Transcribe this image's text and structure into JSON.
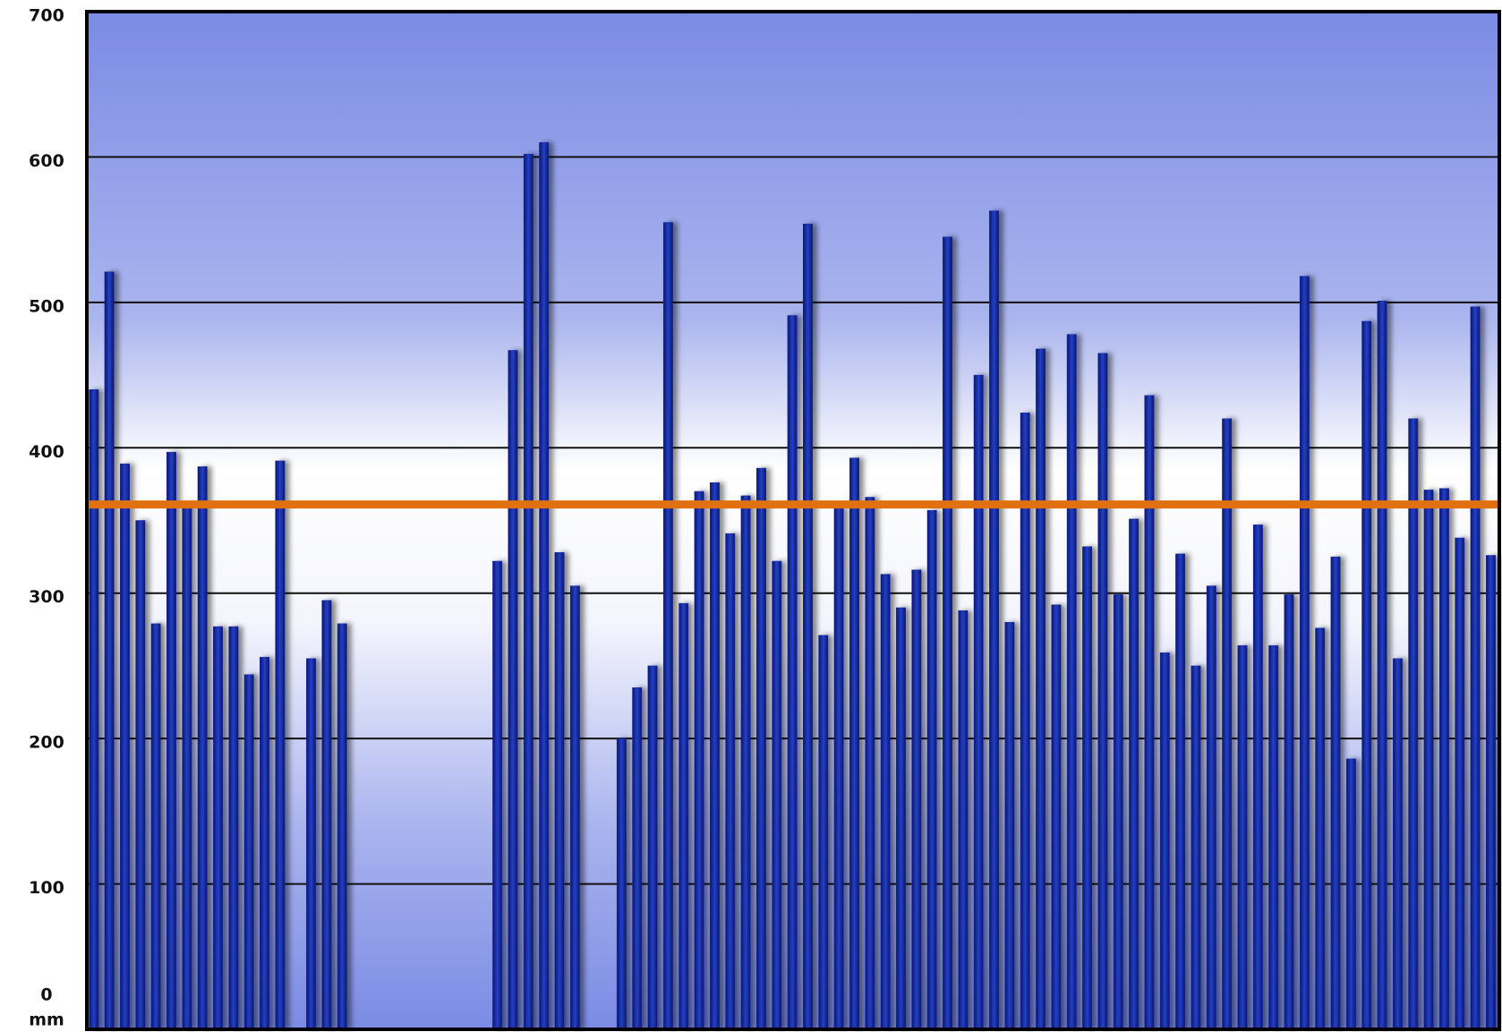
{
  "chart_data": {
    "type": "bar",
    "y_label": "mm",
    "values": [
      440,
      521,
      389,
      350,
      279,
      397,
      362,
      387,
      277,
      277,
      244,
      256,
      391,
      null,
      255,
      295,
      279,
      null,
      null,
      null,
      null,
      null,
      null,
      null,
      null,
      null,
      322,
      467,
      602,
      610,
      328,
      305,
      null,
      null,
      200,
      235,
      250,
      555,
      293,
      370,
      376,
      341,
      367,
      386,
      322,
      491,
      554,
      271,
      359,
      393,
      366,
      313,
      290,
      316,
      357,
      545,
      288,
      450,
      563,
      280,
      424,
      468,
      292,
      478,
      332,
      465,
      299,
      351,
      436,
      259,
      327,
      250,
      305,
      420,
      264,
      347,
      264,
      299,
      518,
      276,
      325,
      186,
      487,
      501,
      255,
      420,
      371,
      372,
      338,
      497,
      326
    ],
    "color": "#1428a0",
    "reference_value": 361,
    "reference_color": "#e07010",
    "ylim": [
      0,
      700
    ],
    "yticks": [
      0,
      100,
      200,
      300,
      400,
      500,
      600,
      700
    ],
    "grid": true
  }
}
